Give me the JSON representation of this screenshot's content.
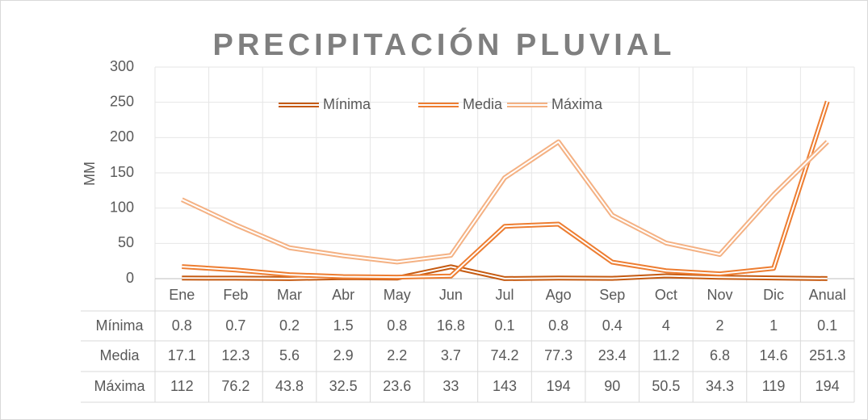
{
  "chart_data": {
    "type": "line",
    "title": "PRECIPITACIÓN PLUVIAL",
    "y_label": "MM",
    "categories": [
      "Ene",
      "Feb",
      "Mar",
      "Abr",
      "May",
      "Jun",
      "Jul",
      "Ago",
      "Sep",
      "Oct",
      "Nov",
      "Dic",
      "Anual"
    ],
    "series": [
      {
        "name": "Mínima",
        "color": "#c55a11",
        "values": [
          0.8,
          0.7,
          0.2,
          1.5,
          0.8,
          16.8,
          0.1,
          0.8,
          0.4,
          4,
          2,
          1,
          0.1
        ]
      },
      {
        "name": "Media",
        "color": "#ed7d31",
        "values": [
          17.1,
          12.3,
          5.6,
          2.9,
          2.2,
          3.7,
          74.2,
          77.3,
          23.4,
          11.2,
          6.8,
          14.6,
          251.3
        ]
      },
      {
        "name": "Máxima",
        "color": "#f4b183",
        "values": [
          112,
          76.2,
          43.8,
          32.5,
          23.6,
          33,
          143,
          194,
          90,
          50.5,
          34.3,
          119,
          194
        ]
      }
    ],
    "ylim": [
      0,
      300
    ],
    "yticks": [
      0,
      50,
      100,
      150,
      200,
      250,
      300
    ],
    "grid": true,
    "legend": "top"
  }
}
